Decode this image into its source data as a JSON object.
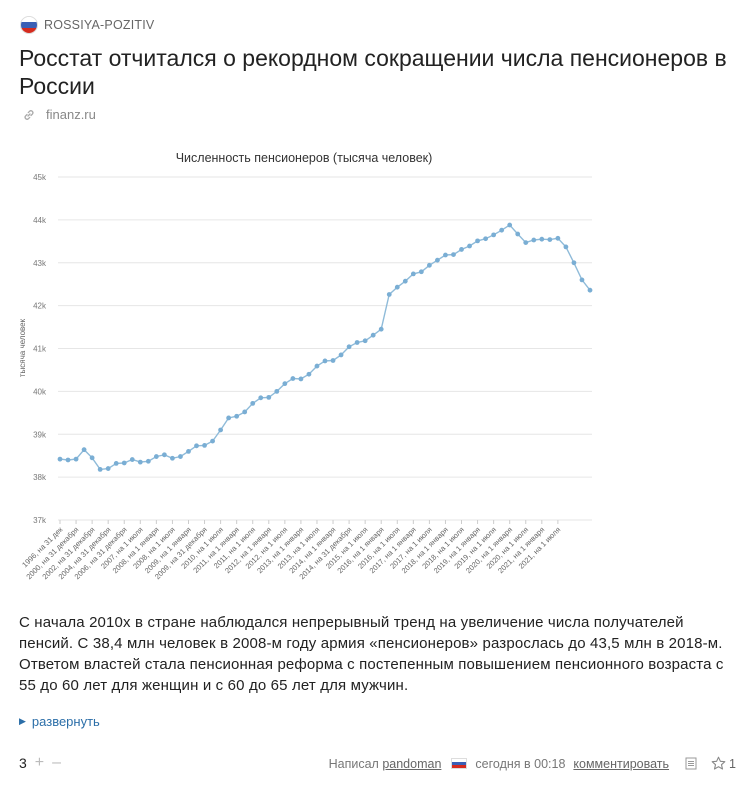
{
  "post": {
    "community_name": "ROSSIYA-POZITIV",
    "title": "Росстат отчитался о рекордном сокращении числа пенсионеров в России",
    "source": "finanz.ru",
    "paragraphs": [
      "С начала 2010х в стране наблюдался непрерывный тренд на увеличение числа получателей пенсий. С 38,4 млн человек в 2008-м году армия «пенсионеров» разрослась до 43,5 млн в 2018-м.",
      "Ответом властей стала пенсионная реформа с постепенным повышением пенсионного возраста с 55 до 60 лет для женщин и с 60 до 65 лет для мужчин."
    ],
    "expand_label": "развернуть"
  },
  "footer": {
    "score": "3",
    "plus": "+",
    "minus": "–",
    "author_prefix": "Написал",
    "author": "pandoman",
    "time": "сегодня в 00:18",
    "comment_label": "комментировать",
    "bookmark_count": "1"
  },
  "colors": {
    "line": "#8fbbd9",
    "point": "#7aaed4",
    "grid": "#e6e6e6",
    "link": "#2b6ea8"
  },
  "chart_data": {
    "type": "line",
    "title": "Численность пенсионеров (тысяча человек)",
    "ylabel": "тысяча человек",
    "ylim": [
      37000,
      45000
    ],
    "ytick_values": [
      37000,
      38000,
      39000,
      40000,
      41000,
      42000,
      43000,
      44000,
      45000
    ],
    "ytick_labels": [
      "37k",
      "38k",
      "39k",
      "40k",
      "41k",
      "42k",
      "43k",
      "44k",
      "45k"
    ],
    "xtick_labels": [
      "1996, на 31 дек",
      "2000, на 31 декабря",
      "2002, на 31 декабря",
      "2004, на 31 декабря",
      "2006, на 31 декабря",
      "2007, на 1 июля",
      "2008, на 1 января",
      "2008, на 1 июля",
      "2009, на 1 января",
      "2009, на 31 декабря",
      "2010, на 1 июля",
      "2011, на 1 января",
      "2011, на 1 июля",
      "2012, на 1 января",
      "2012, на 1 июля",
      "2013, на 1 января",
      "2013, на 1 июля",
      "2014, на 1 января",
      "2014, на 31 декабря",
      "2015, на 1 июля",
      "2016, на 1 января",
      "2016, на 1 июля",
      "2017, на 1 января",
      "2017, на 1 июля",
      "2018, на 1 января",
      "2018, на 1 июля",
      "2019, на 1 января",
      "2019, на 1 июля",
      "2020, на 1 января",
      "2020, на 1 июля",
      "2021, на 1 января",
      "2021, на 1 июля"
    ],
    "xtick_points": [
      0,
      2,
      4,
      6,
      8,
      10,
      12,
      14,
      16,
      18,
      20,
      22,
      24,
      26,
      28,
      30,
      32,
      34,
      36,
      38,
      40,
      42,
      44,
      46,
      48,
      50,
      52,
      54,
      56,
      58,
      60,
      62
    ],
    "series": [
      {
        "values": [
          38420,
          38400,
          38420,
          38640,
          38450,
          38180,
          38200,
          38320,
          38330,
          38410,
          38350,
          38370,
          38480,
          38520,
          38440,
          38480,
          38600,
          38730,
          38740,
          38840,
          39100,
          39380,
          39420,
          39520,
          39720,
          39850,
          39860,
          40000,
          40180,
          40300,
          40290,
          40400,
          40590,
          40710,
          40720,
          40850,
          41040,
          41140,
          41180,
          41310,
          41450,
          42260,
          42430,
          42570,
          42740,
          42790,
          42940,
          43060,
          43180,
          43190,
          43310,
          43390,
          43510,
          43560,
          43650,
          43760,
          43880,
          43670,
          43470,
          43530,
          43550,
          43540,
          43570,
          43370,
          43000,
          42600,
          42360
        ]
      }
    ]
  }
}
